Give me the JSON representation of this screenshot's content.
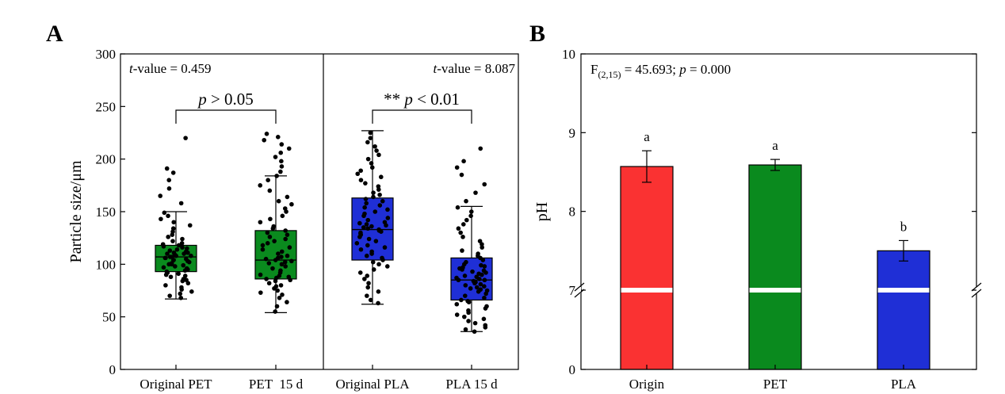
{
  "chart_data": [
    {
      "panel": "A",
      "type": "box",
      "ylabel": "Particle size/μm",
      "ylim": [
        0,
        300
      ],
      "yticks": [
        0,
        50,
        100,
        150,
        200,
        250,
        300
      ],
      "categories": [
        "Original PET",
        "PET  15 d",
        "Original PLA",
        "PLA 15 d"
      ],
      "colors": [
        "#0a8a1e",
        "#0a8a1e",
        "#1f2fd6",
        "#1f2fd6"
      ],
      "boxes": [
        {
          "whisker_low": 67,
          "q1": 93,
          "median": 107,
          "q3": 118,
          "whisker_high": 150
        },
        {
          "whisker_low": 54,
          "q1": 86,
          "median": 104,
          "q3": 132,
          "whisker_high": 184
        },
        {
          "whisker_low": 62,
          "q1": 104,
          "median": 133,
          "q3": 163,
          "whisker_high": 227
        },
        {
          "whisker_low": 36,
          "q1": 66,
          "median": 85,
          "q3": 106,
          "whisker_high": 155
        }
      ],
      "points": [
        [
          68,
          70,
          72,
          74,
          76,
          78,
          80,
          82,
          84,
          85,
          86,
          88,
          89,
          90,
          91,
          92,
          93,
          94,
          95,
          96,
          97,
          98,
          99,
          100,
          100,
          101,
          102,
          103,
          104,
          104,
          105,
          106,
          106,
          107,
          107,
          108,
          108,
          109,
          110,
          110,
          111,
          111,
          112,
          113,
          114,
          115,
          116,
          117,
          118,
          119,
          120,
          122,
          124,
          126,
          128,
          131,
          134,
          137,
          140,
          143,
          146,
          149,
          158,
          165,
          172,
          180,
          187,
          191,
          220
        ],
        [
          55,
          60,
          64,
          68,
          71,
          73,
          75,
          77,
          79,
          80,
          82,
          84,
          85,
          86,
          87,
          88,
          89,
          90,
          92,
          94,
          96,
          98,
          100,
          101,
          102,
          103,
          104,
          105,
          106,
          107,
          108,
          110,
          112,
          114,
          116,
          118,
          120,
          122,
          124,
          126,
          128,
          130,
          132,
          134,
          136,
          140,
          143,
          146,
          150,
          153,
          157,
          160,
          164,
          170,
          175,
          180,
          184,
          188,
          193,
          198,
          202,
          206,
          210,
          214,
          218,
          221,
          224
        ],
        [
          63,
          66,
          70,
          74,
          78,
          82,
          86,
          89,
          92,
          95,
          98,
          100,
          102,
          104,
          106,
          108,
          110,
          112,
          114,
          116,
          118,
          120,
          122,
          124,
          126,
          128,
          129,
          130,
          131,
          132,
          133,
          134,
          135,
          136,
          137,
          138,
          139,
          140,
          142,
          144,
          146,
          148,
          150,
          152,
          154,
          156,
          158,
          160,
          162,
          164,
          166,
          168,
          171,
          174,
          177,
          180,
          183,
          186,
          189,
          192,
          196,
          200,
          204,
          208,
          212,
          216,
          220,
          225
        ],
        [
          36,
          38,
          40,
          42,
          44,
          46,
          48,
          50,
          52,
          54,
          56,
          58,
          60,
          62,
          64,
          65,
          66,
          68,
          70,
          72,
          74,
          75,
          76,
          77,
          78,
          79,
          80,
          81,
          82,
          83,
          84,
          85,
          85,
          86,
          87,
          88,
          89,
          90,
          91,
          92,
          93,
          94,
          95,
          96,
          97,
          98,
          99,
          100,
          102,
          104,
          106,
          108,
          110,
          113,
          116,
          119,
          122,
          126,
          130,
          134,
          138,
          142,
          146,
          150,
          154,
          160,
          168,
          176,
          185,
          192,
          198,
          210
        ]
      ],
      "annotations": {
        "left_stat_prefix": "t",
        "left_stat_text": "-value = 0.459",
        "right_stat_prefix": "t",
        "right_stat_text": "-value = 8.087",
        "pet_p_italic": "p",
        "pet_p_text": " > 0.05",
        "pla_stars": "** ",
        "pla_p_italic": "p",
        "pla_p_text": " < 0.01"
      }
    },
    {
      "panel": "B",
      "type": "bar",
      "ylabel": "pH",
      "categories": [
        "Origin",
        "PET",
        "PLA"
      ],
      "values": [
        8.57,
        8.59,
        7.5
      ],
      "errors": [
        0.2,
        0.07,
        0.13
      ],
      "colors": [
        "#fa3232",
        "#0a8a1e",
        "#1f2fd6"
      ],
      "letters": [
        "a",
        "a",
        "b"
      ],
      "yticks_upper": [
        7,
        8,
        9,
        10
      ],
      "yticks_lower": [
        0
      ],
      "axis_break": true,
      "annotation": {
        "f_base": "F",
        "f_sub": "(2,15)",
        "f_rest": " = 45.693; ",
        "p_italic": "p",
        "p_rest": " = 0.000"
      }
    }
  ],
  "panel_labels": [
    "A",
    "B"
  ]
}
